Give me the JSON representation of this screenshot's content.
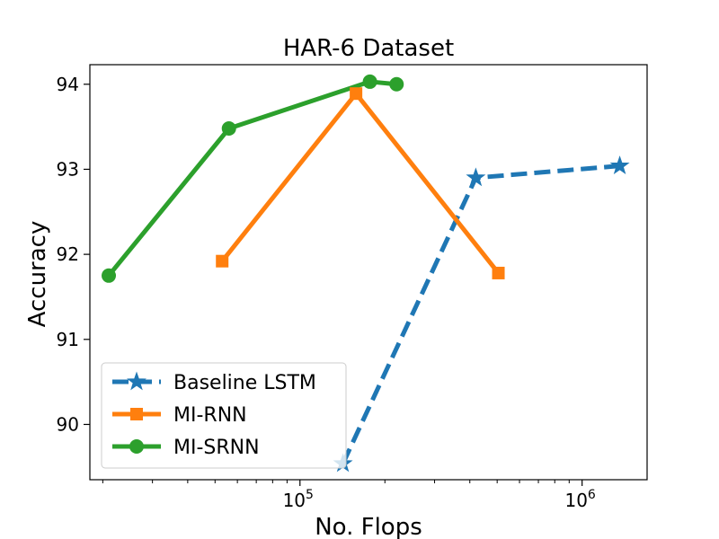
{
  "chart_data": {
    "type": "line",
    "title": "HAR-6 Dataset",
    "xlabel": "No. Flops",
    "ylabel": "Accuracy",
    "xscale": "log",
    "xlim": [
      18000,
      1700000
    ],
    "ylim": [
      89.35,
      94.23
    ],
    "yticks": [
      90,
      91,
      92,
      93,
      94
    ],
    "xticks_major": [
      {
        "value": 100000,
        "label": "10",
        "exp": "5"
      },
      {
        "value": 1000000,
        "label": "10",
        "exp": "6"
      }
    ],
    "xticks_minor": [
      20000,
      30000,
      40000,
      50000,
      60000,
      70000,
      80000,
      90000,
      200000,
      300000,
      400000,
      500000,
      600000,
      700000,
      800000,
      900000
    ],
    "grid": false,
    "legend_position": "lower-left",
    "series": [
      {
        "name": "Baseline LSTM",
        "color": "#1f77b4",
        "marker": "star",
        "linestyle": "dashed",
        "x": [
          142000,
          420000,
          1360000
        ],
        "y": [
          89.54,
          92.9,
          93.04
        ]
      },
      {
        "name": "MI-RNN",
        "color": "#ff7f0e",
        "marker": "square",
        "linestyle": "solid",
        "x": [
          53000,
          158000,
          505000
        ],
        "y": [
          91.92,
          93.89,
          91.78
        ]
      },
      {
        "name": "MI-SRNN",
        "color": "#2ca02c",
        "marker": "circle",
        "linestyle": "solid",
        "x": [
          21000,
          56000,
          177000,
          220000
        ],
        "y": [
          91.75,
          93.48,
          94.03,
          94.0
        ]
      }
    ]
  }
}
